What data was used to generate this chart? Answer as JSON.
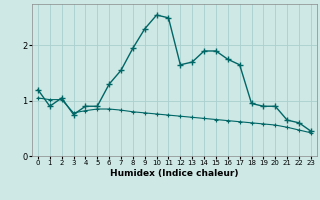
{
  "xlabel": "Humidex (Indice chaleur)",
  "background_color": "#cde8e5",
  "grid_color": "#aacfcc",
  "line_color": "#006666",
  "x_main": [
    0,
    1,
    2,
    3,
    4,
    5,
    6,
    7,
    8,
    9,
    10,
    11,
    12,
    13,
    14,
    15,
    16,
    17,
    18,
    19,
    20,
    21,
    22,
    23
  ],
  "y_main": [
    1.2,
    0.9,
    1.05,
    0.75,
    0.9,
    0.9,
    1.3,
    1.55,
    1.95,
    2.3,
    2.55,
    2.5,
    1.65,
    1.7,
    1.9,
    1.9,
    1.75,
    1.65,
    0.95,
    0.9,
    0.9,
    0.65,
    0.6,
    0.45
  ],
  "x_flat": [
    0,
    1,
    2,
    3,
    4,
    5,
    6,
    7,
    8,
    9,
    10,
    11,
    12,
    13,
    14,
    15,
    16,
    17,
    18,
    19,
    20,
    21,
    22,
    23
  ],
  "y_flat": [
    1.05,
    1.02,
    1.02,
    0.78,
    0.82,
    0.85,
    0.85,
    0.83,
    0.8,
    0.78,
    0.76,
    0.74,
    0.72,
    0.7,
    0.68,
    0.66,
    0.64,
    0.62,
    0.6,
    0.58,
    0.56,
    0.52,
    0.47,
    0.42
  ],
  "ylim": [
    0,
    2.75
  ],
  "xlim": [
    -0.5,
    23.5
  ],
  "yticks": [
    0,
    1,
    2
  ],
  "xticks": [
    0,
    1,
    2,
    3,
    4,
    5,
    6,
    7,
    8,
    9,
    10,
    11,
    12,
    13,
    14,
    15,
    16,
    17,
    18,
    19,
    20,
    21,
    22,
    23
  ]
}
